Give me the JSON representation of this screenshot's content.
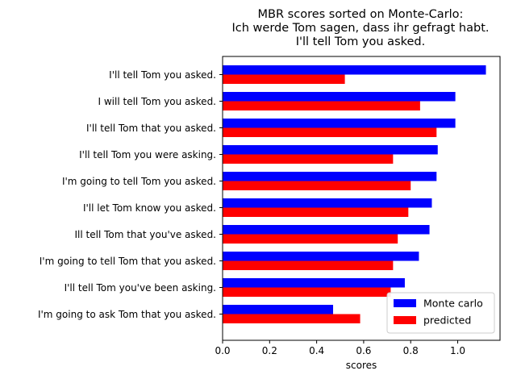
{
  "chart_data": {
    "type": "bar",
    "orientation": "horizontal",
    "title": [
      "MBR scores sorted on Monte-Carlo:",
      "Ich werde Tom sagen, dass ihr gefragt habt.",
      "I'll tell Tom you asked."
    ],
    "xlabel": "scores",
    "ylabel": "",
    "xlim": [
      0,
      1.18
    ],
    "xticks": [
      "0.0",
      "0.2",
      "0.4",
      "0.6",
      "0.8",
      "1.0"
    ],
    "grid": false,
    "legend_position": "lower-right",
    "categories": [
      "I'll tell Tom you asked.",
      "I will tell Tom you asked.",
      "I'll tell Tom that you asked.",
      "I'll tell Tom you were asking.",
      "I'm going to tell Tom you asked.",
      "I'll let Tom know you asked.",
      "Ill tell Tom that you've asked.",
      "I'm going to tell Tom that you asked.",
      "I'll tell Tom you've been asking.",
      "I'm going to ask Tom that you asked."
    ],
    "series": [
      {
        "name": "Monte carlo",
        "color": "#0000ff",
        "values": [
          1.12,
          0.99,
          0.99,
          0.915,
          0.91,
          0.89,
          0.88,
          0.835,
          0.775,
          0.47
        ]
      },
      {
        "name": "predicted",
        "color": "#ff0000",
        "values": [
          0.52,
          0.84,
          0.91,
          0.725,
          0.8,
          0.79,
          0.745,
          0.725,
          0.715,
          0.585
        ]
      }
    ]
  }
}
